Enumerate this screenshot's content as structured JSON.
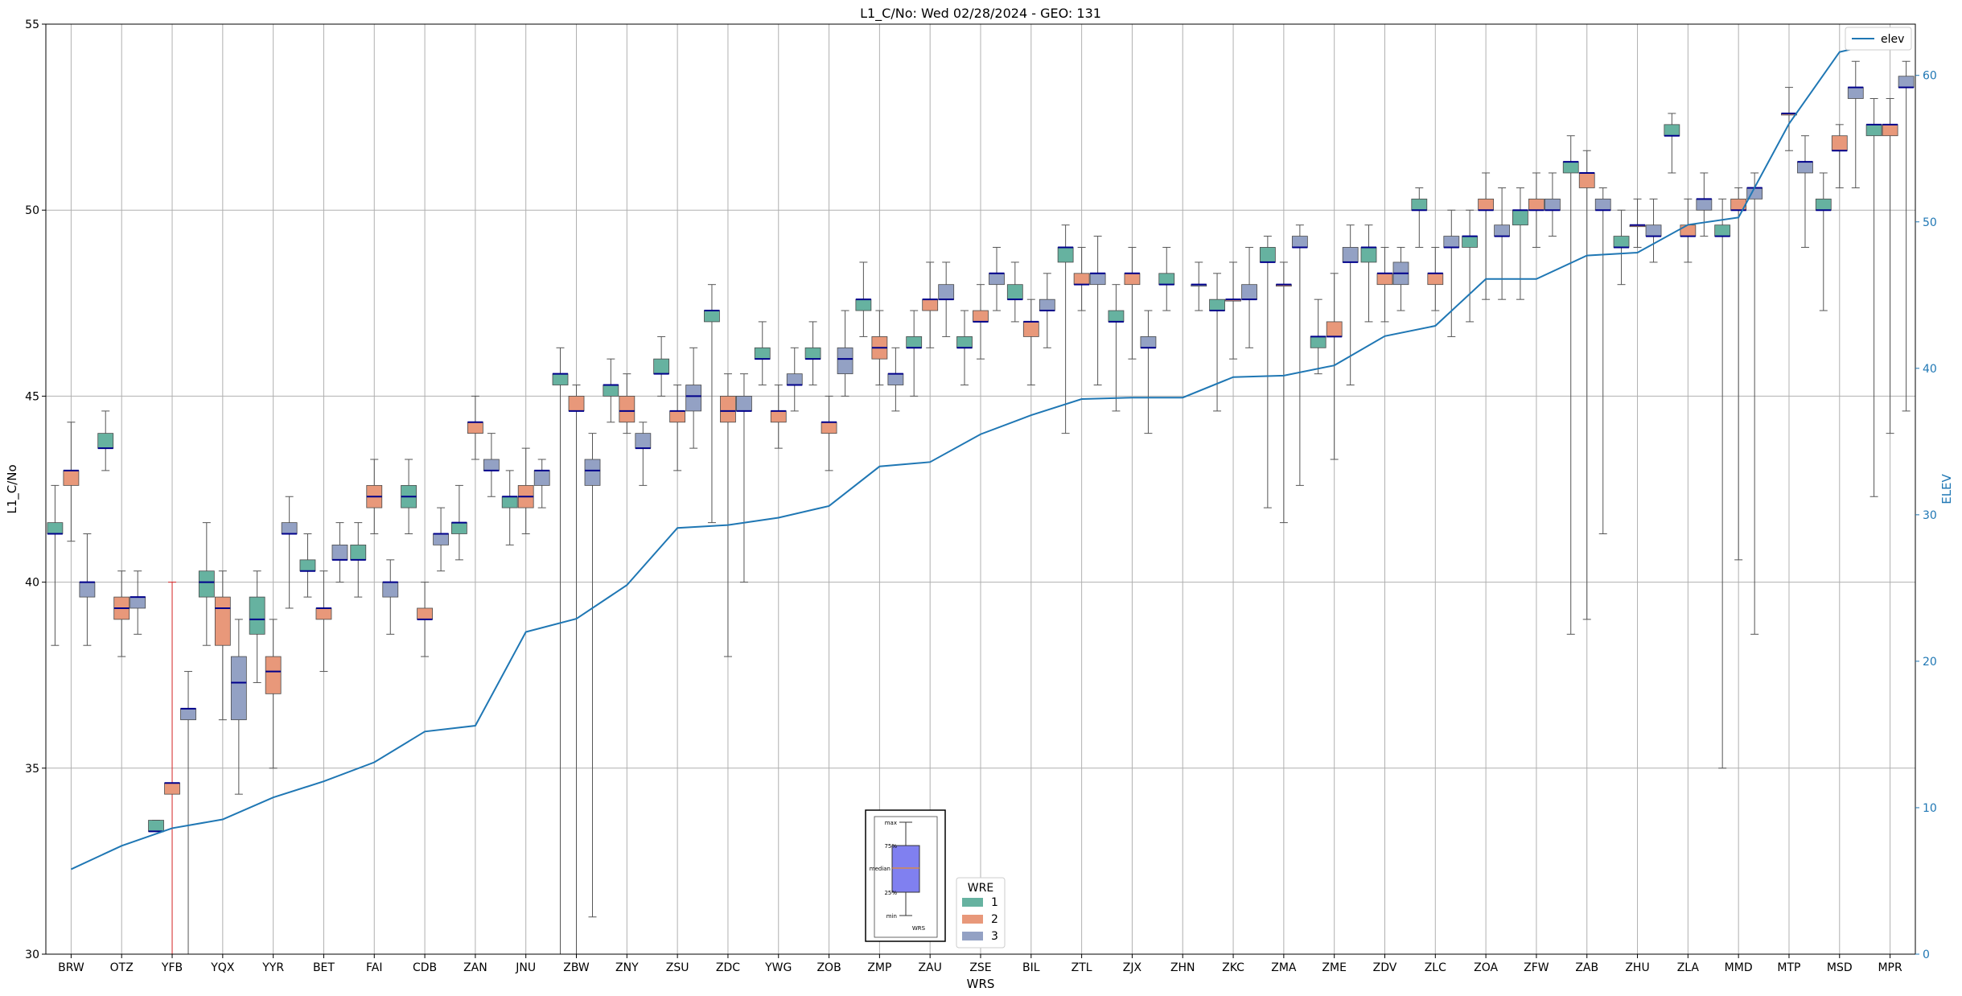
{
  "chart_data": {
    "type": "box",
    "title": "L1_C/No: Wed 02/28/2024 - GEO: 131",
    "xlabel": "WRS",
    "ylabel": "L1_C/No",
    "y2label": "ELEV",
    "ylim": [
      30,
      55
    ],
    "y2lim": [
      0,
      63.5
    ],
    "yticks": [
      30,
      35,
      40,
      45,
      50,
      55
    ],
    "y2ticks": [
      0,
      10,
      20,
      30,
      40,
      50,
      60
    ],
    "grid": true,
    "categories": [
      "BRW",
      "OTZ",
      "YFB",
      "YQX",
      "YYR",
      "BET",
      "FAI",
      "CDB",
      "ZAN",
      "JNU",
      "ZBW",
      "ZNY",
      "ZSU",
      "ZDC",
      "YWG",
      "ZOB",
      "ZMP",
      "ZAU",
      "ZSE",
      "BIL",
      "ZTL",
      "ZJX",
      "ZHN",
      "ZKC",
      "ZMA",
      "ZME",
      "ZDV",
      "ZLC",
      "ZOA",
      "ZFW",
      "ZAB",
      "ZHU",
      "ZLA",
      "MMD",
      "MTP",
      "MSD",
      "MPR"
    ],
    "colors": {
      "wre1": "#66b2a0",
      "wre2": "#e8987a",
      "wre3": "#93a1c4",
      "elev": "#1f77b4",
      "median": "#00008b",
      "whisker": "#555555",
      "highlight": "#d62728"
    },
    "wre_legend_title": "WRE",
    "wre_legend_labels": [
      "1",
      "2",
      "3"
    ],
    "elev_legend_label": "elev",
    "inset_labels": [
      "max",
      "75%",
      "median",
      "25%",
      "min",
      "WRS"
    ],
    "elev": [
      5.8,
      7.4,
      8.6,
      9.2,
      10.7,
      11.8,
      13.1,
      15.2,
      15.6,
      22.0,
      22.9,
      25.2,
      29.1,
      29.3,
      29.8,
      30.6,
      33.3,
      33.6,
      35.5,
      36.8,
      37.9,
      38.0,
      38.0,
      39.4,
      39.5,
      40.2,
      42.2,
      42.9,
      46.1,
      46.1,
      47.7,
      47.9,
      49.8,
      50.3,
      56.7,
      61.6,
      62.4
    ],
    "boxes": [
      {
        "wrs": "BRW",
        "wre": 1,
        "min": 38.3,
        "q1": 41.3,
        "med": 41.3,
        "q3": 41.6,
        "max": 42.6
      },
      {
        "wrs": "BRW",
        "wre": 2,
        "min": 41.1,
        "q1": 42.6,
        "med": 43.0,
        "q3": 43.0,
        "max": 44.3
      },
      {
        "wrs": "BRW",
        "wre": 3,
        "min": 38.3,
        "q1": 39.6,
        "med": 40.0,
        "q3": 40.0,
        "max": 41.3
      },
      {
        "wrs": "OTZ",
        "wre": 1,
        "min": 43.0,
        "q1": 43.6,
        "med": 43.6,
        "q3": 44.0,
        "max": 44.6
      },
      {
        "wrs": "OTZ",
        "wre": 2,
        "min": 38.0,
        "q1": 39.0,
        "med": 39.3,
        "q3": 39.6,
        "max": 40.3
      },
      {
        "wrs": "OTZ",
        "wre": 3,
        "min": 38.6,
        "q1": 39.3,
        "med": 39.6,
        "q3": 39.6,
        "max": 40.3
      },
      {
        "wrs": "YFB",
        "wre": 1,
        "min": 33.3,
        "q1": 33.3,
        "med": 33.3,
        "q3": 33.6,
        "max": 33.6
      },
      {
        "wrs": "YFB",
        "wre": 2,
        "min": 30.0,
        "q1": 34.3,
        "med": 34.6,
        "q3": 34.6,
        "max": 40.0
      },
      {
        "wrs": "YFB",
        "wre": 3,
        "min": 30.0,
        "q1": 36.3,
        "med": 36.6,
        "q3": 36.6,
        "max": 37.6
      },
      {
        "wrs": "YQX",
        "wre": 1,
        "min": 38.3,
        "q1": 39.6,
        "med": 40.0,
        "q3": 40.3,
        "max": 41.6
      },
      {
        "wrs": "YQX",
        "wre": 2,
        "min": 36.3,
        "q1": 38.3,
        "med": 39.3,
        "q3": 39.6,
        "max": 40.3
      },
      {
        "wrs": "YQX",
        "wre": 3,
        "min": 34.3,
        "q1": 36.3,
        "med": 37.3,
        "q3": 38.0,
        "max": 39.0
      },
      {
        "wrs": "YYR",
        "wre": 1,
        "min": 37.3,
        "q1": 38.6,
        "med": 39.0,
        "q3": 39.6,
        "max": 40.3
      },
      {
        "wrs": "YYR",
        "wre": 2,
        "min": 35.0,
        "q1": 37.0,
        "med": 37.6,
        "q3": 38.0,
        "max": 39.0
      },
      {
        "wrs": "YYR",
        "wre": 3,
        "min": 39.3,
        "q1": 41.3,
        "med": 41.3,
        "q3": 41.6,
        "max": 42.3
      },
      {
        "wrs": "BET",
        "wre": 1,
        "min": 39.6,
        "q1": 40.3,
        "med": 40.3,
        "q3": 40.6,
        "max": 41.3
      },
      {
        "wrs": "BET",
        "wre": 2,
        "min": 37.6,
        "q1": 39.0,
        "med": 39.3,
        "q3": 39.3,
        "max": 40.3
      },
      {
        "wrs": "BET",
        "wre": 3,
        "min": 40.0,
        "q1": 40.6,
        "med": 40.6,
        "q3": 41.0,
        "max": 41.6
      },
      {
        "wrs": "FAI",
        "wre": 1,
        "min": 39.6,
        "q1": 40.6,
        "med": 40.6,
        "q3": 41.0,
        "max": 41.6
      },
      {
        "wrs": "FAI",
        "wre": 2,
        "min": 41.3,
        "q1": 42.0,
        "med": 42.3,
        "q3": 42.6,
        "max": 43.3
      },
      {
        "wrs": "FAI",
        "wre": 3,
        "min": 38.6,
        "q1": 39.6,
        "med": 40.0,
        "q3": 40.0,
        "max": 40.6
      },
      {
        "wrs": "CDB",
        "wre": 1,
        "min": 41.3,
        "q1": 42.0,
        "med": 42.3,
        "q3": 42.6,
        "max": 43.3
      },
      {
        "wrs": "CDB",
        "wre": 2,
        "min": 38.0,
        "q1": 39.0,
        "med": 39.0,
        "q3": 39.3,
        "max": 40.0
      },
      {
        "wrs": "CDB",
        "wre": 3,
        "min": 40.3,
        "q1": 41.0,
        "med": 41.3,
        "q3": 41.3,
        "max": 42.0
      },
      {
        "wrs": "ZAN",
        "wre": 1,
        "min": 40.6,
        "q1": 41.3,
        "med": 41.6,
        "q3": 41.6,
        "max": 42.6
      },
      {
        "wrs": "ZAN",
        "wre": 2,
        "min": 43.3,
        "q1": 44.0,
        "med": 44.3,
        "q3": 44.3,
        "max": 45.0
      },
      {
        "wrs": "ZAN",
        "wre": 3,
        "min": 42.3,
        "q1": 43.0,
        "med": 43.0,
        "q3": 43.3,
        "max": 44.0
      },
      {
        "wrs": "JNU",
        "wre": 1,
        "min": 41.0,
        "q1": 42.0,
        "med": 42.3,
        "q3": 42.3,
        "max": 43.0
      },
      {
        "wrs": "JNU",
        "wre": 2,
        "min": 41.3,
        "q1": 42.0,
        "med": 42.3,
        "q3": 42.6,
        "max": 43.6
      },
      {
        "wrs": "JNU",
        "wre": 3,
        "min": 42.0,
        "q1": 42.6,
        "med": 43.0,
        "q3": 43.0,
        "max": 43.3
      },
      {
        "wrs": "ZBW",
        "wre": 1,
        "min": 30.0,
        "q1": 45.3,
        "med": 45.6,
        "q3": 45.6,
        "max": 46.3
      },
      {
        "wrs": "ZBW",
        "wre": 2,
        "min": 30.0,
        "q1": 44.6,
        "med": 44.6,
        "q3": 45.0,
        "max": 45.3
      },
      {
        "wrs": "ZBW",
        "wre": 3,
        "min": 31.0,
        "q1": 42.6,
        "med": 43.0,
        "q3": 43.3,
        "max": 44.0
      },
      {
        "wrs": "ZNY",
        "wre": 1,
        "min": 44.3,
        "q1": 45.0,
        "med": 45.3,
        "q3": 45.3,
        "max": 46.0
      },
      {
        "wrs": "ZNY",
        "wre": 2,
        "min": 44.0,
        "q1": 44.3,
        "med": 44.6,
        "q3": 45.0,
        "max": 45.6
      },
      {
        "wrs": "ZNY",
        "wre": 3,
        "min": 42.6,
        "q1": 43.6,
        "med": 43.6,
        "q3": 44.0,
        "max": 44.3
      },
      {
        "wrs": "ZSU",
        "wre": 1,
        "min": 45.0,
        "q1": 45.6,
        "med": 45.6,
        "q3": 46.0,
        "max": 46.6
      },
      {
        "wrs": "ZSU",
        "wre": 2,
        "min": 43.0,
        "q1": 44.3,
        "med": 44.6,
        "q3": 44.6,
        "max": 45.3
      },
      {
        "wrs": "ZSU",
        "wre": 3,
        "min": 43.6,
        "q1": 44.6,
        "med": 45.0,
        "q3": 45.3,
        "max": 46.3
      },
      {
        "wrs": "ZDC",
        "wre": 1,
        "min": 41.6,
        "q1": 47.0,
        "med": 47.3,
        "q3": 47.3,
        "max": 48.0
      },
      {
        "wrs": "ZDC",
        "wre": 2,
        "min": 38.0,
        "q1": 44.3,
        "med": 44.6,
        "q3": 45.0,
        "max": 45.6
      },
      {
        "wrs": "ZDC",
        "wre": 3,
        "min": 40.0,
        "q1": 44.6,
        "med": 44.6,
        "q3": 45.0,
        "max": 45.6
      },
      {
        "wrs": "YWG",
        "wre": 1,
        "min": 45.3,
        "q1": 46.0,
        "med": 46.0,
        "q3": 46.3,
        "max": 47.0
      },
      {
        "wrs": "YWG",
        "wre": 2,
        "min": 43.6,
        "q1": 44.3,
        "med": 44.6,
        "q3": 44.6,
        "max": 45.3
      },
      {
        "wrs": "YWG",
        "wre": 3,
        "min": 44.6,
        "q1": 45.3,
        "med": 45.3,
        "q3": 45.6,
        "max": 46.3
      },
      {
        "wrs": "ZOB",
        "wre": 1,
        "min": 45.3,
        "q1": 46.0,
        "med": 46.0,
        "q3": 46.3,
        "max": 47.0
      },
      {
        "wrs": "ZOB",
        "wre": 2,
        "min": 43.0,
        "q1": 44.0,
        "med": 44.3,
        "q3": 44.3,
        "max": 45.0
      },
      {
        "wrs": "ZOB",
        "wre": 3,
        "min": 45.0,
        "q1": 45.6,
        "med": 46.0,
        "q3": 46.3,
        "max": 47.3
      },
      {
        "wrs": "ZMP",
        "wre": 1,
        "min": 46.6,
        "q1": 47.3,
        "med": 47.6,
        "q3": 47.6,
        "max": 48.6
      },
      {
        "wrs": "ZMP",
        "wre": 2,
        "min": 45.3,
        "q1": 46.0,
        "med": 46.3,
        "q3": 46.6,
        "max": 47.3
      },
      {
        "wrs": "ZMP",
        "wre": 3,
        "min": 44.6,
        "q1": 45.3,
        "med": 45.6,
        "q3": 45.6,
        "max": 46.3
      },
      {
        "wrs": "ZAU",
        "wre": 1,
        "min": 45.0,
        "q1": 46.3,
        "med": 46.3,
        "q3": 46.6,
        "max": 47.3
      },
      {
        "wrs": "ZAU",
        "wre": 2,
        "min": 46.3,
        "q1": 47.3,
        "med": 47.6,
        "q3": 47.6,
        "max": 48.6
      },
      {
        "wrs": "ZAU",
        "wre": 3,
        "min": 46.6,
        "q1": 47.6,
        "med": 47.6,
        "q3": 48.0,
        "max": 48.6
      },
      {
        "wrs": "ZSE",
        "wre": 1,
        "min": 45.3,
        "q1": 46.3,
        "med": 46.3,
        "q3": 46.6,
        "max": 47.3
      },
      {
        "wrs": "ZSE",
        "wre": 2,
        "min": 46.0,
        "q1": 47.0,
        "med": 47.0,
        "q3": 47.3,
        "max": 48.0
      },
      {
        "wrs": "ZSE",
        "wre": 3,
        "min": 47.3,
        "q1": 48.0,
        "med": 48.3,
        "q3": 48.3,
        "max": 49.0
      },
      {
        "wrs": "BIL",
        "wre": 1,
        "min": 47.0,
        "q1": 47.6,
        "med": 47.6,
        "q3": 48.0,
        "max": 48.6
      },
      {
        "wrs": "BIL",
        "wre": 2,
        "min": 45.3,
        "q1": 46.6,
        "med": 47.0,
        "q3": 47.0,
        "max": 47.6
      },
      {
        "wrs": "BIL",
        "wre": 3,
        "min": 46.3,
        "q1": 47.3,
        "med": 47.3,
        "q3": 47.6,
        "max": 48.3
      },
      {
        "wrs": "ZTL",
        "wre": 1,
        "min": 44.0,
        "q1": 48.6,
        "med": 49.0,
        "q3": 49.0,
        "max": 49.6
      },
      {
        "wrs": "ZTL",
        "wre": 2,
        "min": 47.3,
        "q1": 48.0,
        "med": 48.0,
        "q3": 48.3,
        "max": 49.0
      },
      {
        "wrs": "ZTL",
        "wre": 3,
        "min": 45.3,
        "q1": 48.0,
        "med": 48.3,
        "q3": 48.3,
        "max": 49.3
      },
      {
        "wrs": "ZJX",
        "wre": 1,
        "min": 44.6,
        "q1": 47.0,
        "med": 47.0,
        "q3": 47.3,
        "max": 48.0
      },
      {
        "wrs": "ZJX",
        "wre": 2,
        "min": 46.0,
        "q1": 48.0,
        "med": 48.3,
        "q3": 48.3,
        "max": 49.0
      },
      {
        "wrs": "ZJX",
        "wre": 3,
        "min": 44.0,
        "q1": 46.3,
        "med": 46.3,
        "q3": 46.6,
        "max": 47.3
      },
      {
        "wrs": "ZHN",
        "wre": 1,
        "min": 47.3,
        "q1": 48.0,
        "med": 48.0,
        "q3": 48.3,
        "max": 49.0
      },
      {
        "wrs": "ZHN",
        "wre": 3,
        "min": 47.3,
        "q1": 48.0,
        "med": 48.0,
        "q3": 48.0,
        "max": 48.6
      },
      {
        "wrs": "ZKC",
        "wre": 1,
        "min": 44.6,
        "q1": 47.3,
        "med": 47.3,
        "q3": 47.6,
        "max": 48.3
      },
      {
        "wrs": "ZKC",
        "wre": 2,
        "min": 46.0,
        "q1": 47.6,
        "med": 47.6,
        "q3": 47.6,
        "max": 48.6
      },
      {
        "wrs": "ZKC",
        "wre": 3,
        "min": 46.3,
        "q1": 47.6,
        "med": 47.6,
        "q3": 48.0,
        "max": 49.0
      },
      {
        "wrs": "ZMA",
        "wre": 1,
        "min": 42.0,
        "q1": 48.6,
        "med": 48.6,
        "q3": 49.0,
        "max": 49.3
      },
      {
        "wrs": "ZMA",
        "wre": 2,
        "min": 41.6,
        "q1": 48.0,
        "med": 48.0,
        "q3": 48.0,
        "max": 48.6
      },
      {
        "wrs": "ZMA",
        "wre": 3,
        "min": 42.6,
        "q1": 49.0,
        "med": 49.0,
        "q3": 49.3,
        "max": 49.6
      },
      {
        "wrs": "ZME",
        "wre": 1,
        "min": 45.6,
        "q1": 46.3,
        "med": 46.6,
        "q3": 46.6,
        "max": 47.6
      },
      {
        "wrs": "ZME",
        "wre": 2,
        "min": 43.3,
        "q1": 46.6,
        "med": 46.6,
        "q3": 47.0,
        "max": 48.3
      },
      {
        "wrs": "ZME",
        "wre": 3,
        "min": 45.3,
        "q1": 48.6,
        "med": 48.6,
        "q3": 49.0,
        "max": 49.6
      },
      {
        "wrs": "ZDV",
        "wre": 1,
        "min": 47.0,
        "q1": 48.6,
        "med": 49.0,
        "q3": 49.0,
        "max": 49.6
      },
      {
        "wrs": "ZDV",
        "wre": 2,
        "min": 47.0,
        "q1": 48.0,
        "med": 48.3,
        "q3": 48.3,
        "max": 49.0
      },
      {
        "wrs": "ZDV",
        "wre": 3,
        "min": 47.3,
        "q1": 48.0,
        "med": 48.3,
        "q3": 48.6,
        "max": 49.0
      },
      {
        "wrs": "ZLC",
        "wre": 1,
        "min": 49.0,
        "q1": 50.0,
        "med": 50.0,
        "q3": 50.3,
        "max": 50.6
      },
      {
        "wrs": "ZLC",
        "wre": 2,
        "min": 47.3,
        "q1": 48.0,
        "med": 48.3,
        "q3": 48.3,
        "max": 49.0
      },
      {
        "wrs": "ZLC",
        "wre": 3,
        "min": 46.6,
        "q1": 49.0,
        "med": 49.0,
        "q3": 49.3,
        "max": 50.0
      },
      {
        "wrs": "ZOA",
        "wre": 1,
        "min": 47.0,
        "q1": 49.0,
        "med": 49.3,
        "q3": 49.3,
        "max": 50.0
      },
      {
        "wrs": "ZOA",
        "wre": 2,
        "min": 47.6,
        "q1": 50.0,
        "med": 50.0,
        "q3": 50.3,
        "max": 51.0
      },
      {
        "wrs": "ZOA",
        "wre": 3,
        "min": 47.6,
        "q1": 49.3,
        "med": 49.3,
        "q3": 49.6,
        "max": 50.6
      },
      {
        "wrs": "ZFW",
        "wre": 1,
        "min": 47.6,
        "q1": 49.6,
        "med": 50.0,
        "q3": 50.0,
        "max": 50.6
      },
      {
        "wrs": "ZFW",
        "wre": 2,
        "min": 49.0,
        "q1": 50.0,
        "med": 50.0,
        "q3": 50.3,
        "max": 51.0
      },
      {
        "wrs": "ZFW",
        "wre": 3,
        "min": 49.3,
        "q1": 50.0,
        "med": 50.0,
        "q3": 50.3,
        "max": 51.0
      },
      {
        "wrs": "ZAB",
        "wre": 1,
        "min": 38.6,
        "q1": 51.0,
        "med": 51.3,
        "q3": 51.3,
        "max": 52.0
      },
      {
        "wrs": "ZAB",
        "wre": 2,
        "min": 39.0,
        "q1": 50.6,
        "med": 51.0,
        "q3": 51.0,
        "max": 51.6
      },
      {
        "wrs": "ZAB",
        "wre": 3,
        "min": 41.3,
        "q1": 50.0,
        "med": 50.0,
        "q3": 50.3,
        "max": 50.6
      },
      {
        "wrs": "ZHU",
        "wre": 1,
        "min": 48.0,
        "q1": 49.0,
        "med": 49.0,
        "q3": 49.3,
        "max": 50.0
      },
      {
        "wrs": "ZHU",
        "wre": 2,
        "min": 49.0,
        "q1": 49.6,
        "med": 49.6,
        "q3": 49.6,
        "max": 50.3
      },
      {
        "wrs": "ZHU",
        "wre": 3,
        "min": 48.6,
        "q1": 49.3,
        "med": 49.3,
        "q3": 49.6,
        "max": 50.3
      },
      {
        "wrs": "ZLA",
        "wre": 1,
        "min": 51.0,
        "q1": 52.0,
        "med": 52.0,
        "q3": 52.3,
        "max": 52.6
      },
      {
        "wrs": "ZLA",
        "wre": 2,
        "min": 48.6,
        "q1": 49.3,
        "med": 49.3,
        "q3": 49.6,
        "max": 50.3
      },
      {
        "wrs": "ZLA",
        "wre": 3,
        "min": 49.3,
        "q1": 50.0,
        "med": 50.3,
        "q3": 50.3,
        "max": 51.0
      },
      {
        "wrs": "MMD",
        "wre": 1,
        "min": 35.0,
        "q1": 49.3,
        "med": 49.3,
        "q3": 49.6,
        "max": 50.3
      },
      {
        "wrs": "MMD",
        "wre": 2,
        "min": 40.6,
        "q1": 50.0,
        "med": 50.0,
        "q3": 50.3,
        "max": 50.6
      },
      {
        "wrs": "MMD",
        "wre": 3,
        "min": 38.6,
        "q1": 50.3,
        "med": 50.6,
        "q3": 50.6,
        "max": 51.0
      },
      {
        "wrs": "MTP",
        "wre": 2,
        "min": 51.6,
        "q1": 52.6,
        "med": 52.6,
        "q3": 52.6,
        "max": 53.3
      },
      {
        "wrs": "MTP",
        "wre": 3,
        "min": 49.0,
        "q1": 51.0,
        "med": 51.3,
        "q3": 51.3,
        "max": 52.0
      },
      {
        "wrs": "MSD",
        "wre": 1,
        "min": 47.3,
        "q1": 50.0,
        "med": 50.0,
        "q3": 50.3,
        "max": 51.0
      },
      {
        "wrs": "MSD",
        "wre": 2,
        "min": 50.6,
        "q1": 51.6,
        "med": 51.6,
        "q3": 52.0,
        "max": 52.3
      },
      {
        "wrs": "MSD",
        "wre": 3,
        "min": 50.6,
        "q1": 53.0,
        "med": 53.3,
        "q3": 53.3,
        "max": 54.0
      },
      {
        "wrs": "MPR",
        "wre": 1,
        "min": 42.3,
        "q1": 52.0,
        "med": 52.3,
        "q3": 52.3,
        "max": 53.0
      },
      {
        "wrs": "MPR",
        "wre": 2,
        "min": 44.0,
        "q1": 52.0,
        "med": 52.3,
        "q3": 52.3,
        "max": 53.0
      },
      {
        "wrs": "MPR",
        "wre": 3,
        "min": 44.6,
        "q1": 53.3,
        "med": 53.3,
        "q3": 53.6,
        "max": 54.0
      }
    ]
  }
}
